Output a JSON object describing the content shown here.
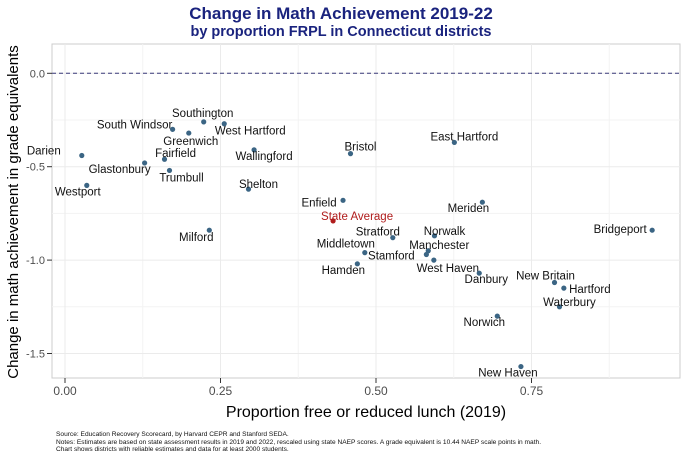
{
  "chart_data": {
    "type": "scatter",
    "title": "Change in Math Achievement 2019-22",
    "subtitle": "by proportion FRPL in Connecticut districts",
    "xlabel": "Proportion free or reduced lunch (2019)",
    "ylabel": "Change in math achievement in grade equivalents",
    "xlim": [
      -0.02,
      0.97
    ],
    "ylim": [
      -1.62,
      0.17
    ],
    "x_ticks": [
      "0.00",
      "0.25",
      "0.50",
      "0.75"
    ],
    "y_ticks": [
      "0.0",
      "-0.5",
      "-1.0",
      "-1.5"
    ],
    "reference_line": {
      "y": 0,
      "style": "dashed"
    },
    "grid": true,
    "colors": {
      "point": "#3b6584",
      "highlight": "#b01c1c",
      "title": "#1a237e"
    },
    "points": [
      {
        "label": "Darien",
        "x": 0.027,
        "y": -0.44
      },
      {
        "label": "Westport",
        "x": 0.035,
        "y": -0.6
      },
      {
        "label": "Glastonbury",
        "x": 0.128,
        "y": -0.48
      },
      {
        "label": "Fairfield",
        "x": 0.16,
        "y": -0.46
      },
      {
        "label": "Trumbull",
        "x": 0.168,
        "y": -0.52
      },
      {
        "label": "South Windsor",
        "x": 0.173,
        "y": -0.3
      },
      {
        "label": "Greenwich",
        "x": 0.199,
        "y": -0.32
      },
      {
        "label": "Southington",
        "x": 0.223,
        "y": -0.26
      },
      {
        "label": "West Hartford",
        "x": 0.256,
        "y": -0.27
      },
      {
        "label": "Wallingford",
        "x": 0.304,
        "y": -0.41
      },
      {
        "label": "Shelton",
        "x": 0.295,
        "y": -0.62
      },
      {
        "label": "Milford",
        "x": 0.232,
        "y": -0.84
      },
      {
        "label": "Enfield",
        "x": 0.447,
        "y": -0.68
      },
      {
        "label": "Bristol",
        "x": 0.459,
        "y": -0.43
      },
      {
        "label": "East Hartford",
        "x": 0.626,
        "y": -0.37
      },
      {
        "label": "State Average",
        "x": 0.431,
        "y": -0.79,
        "highlight": true
      },
      {
        "label": "Meriden",
        "x": 0.671,
        "y": -0.69
      },
      {
        "label": "Bridgeport",
        "x": 0.944,
        "y": -0.84
      },
      {
        "label": "Stratford",
        "x": 0.527,
        "y": -0.88
      },
      {
        "label": "Norwalk",
        "x": 0.594,
        "y": -0.87
      },
      {
        "label": "Middletown",
        "x": 0.482,
        "y": -0.96
      },
      {
        "label": "Manchester",
        "x": 0.584,
        "y": -0.95
      },
      {
        "label": "Stamford",
        "x": 0.581,
        "y": -0.97
      },
      {
        "label": "West Haven",
        "x": 0.593,
        "y": -1.0
      },
      {
        "label": "Hamden",
        "x": 0.47,
        "y": -1.02
      },
      {
        "label": "Danbury",
        "x": 0.666,
        "y": -1.07
      },
      {
        "label": "New Britain",
        "x": 0.787,
        "y": -1.12
      },
      {
        "label": "Hartford",
        "x": 0.802,
        "y": -1.15
      },
      {
        "label": "Waterbury",
        "x": 0.795,
        "y": -1.25
      },
      {
        "label": "Norwich",
        "x": 0.695,
        "y": -1.3
      },
      {
        "label": "New Haven",
        "x": 0.733,
        "y": -1.57
      }
    ]
  },
  "notes": {
    "source": "Source: Education Recovery Scorecard, by Harvard CEPR and Stanford SEDA.",
    "line2": "Notes: Estimates are based on state assessment results in 2019 and 2022, rescaled using state NAEP scores. A grade equivalent is 10.44 NAEP scale points in math.",
    "line3": "Chart shows districts with reliable estimates and data for at least 2000 students."
  }
}
